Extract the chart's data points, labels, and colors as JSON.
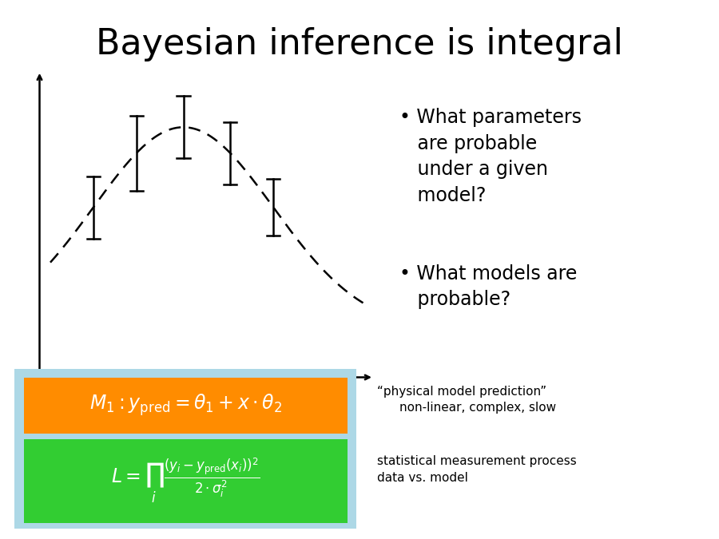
{
  "title": "Bayesian inference is integral",
  "title_fontsize": 32,
  "physical_label_line1": "“physical model prediction”",
  "physical_label_line2": "non-linear, complex, slow",
  "stat_label_line1": "statistical measurement process",
  "stat_label_line2": "data vs. model",
  "orange_color": "#FF8C00",
  "green_color": "#32CD32",
  "lightblue_color": "#ADD8E6",
  "bg_color": "#FFFFFF"
}
